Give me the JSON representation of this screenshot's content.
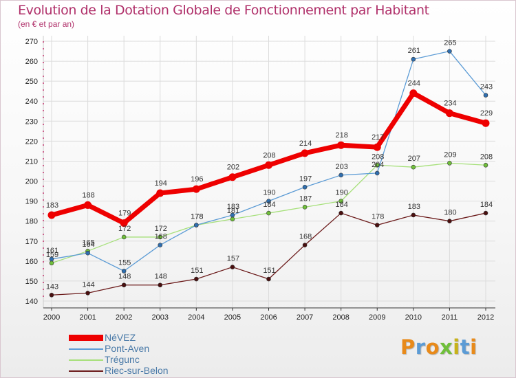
{
  "title": "Evolution de la Dotation Globale de Fonctionnement par Habitant",
  "subtitle": "(en € et par an)",
  "brand": {
    "letters": [
      "P",
      "r",
      "o",
      "x",
      "i",
      "t",
      "i"
    ],
    "colors": [
      "#e88a1a",
      "#5b9bd5",
      "#e88a1a",
      "#6fbf3a",
      "#c7b21a",
      "#5b9bd5",
      "#e88a1a"
    ]
  },
  "chart_data": {
    "type": "line",
    "title": "Evolution de la Dotation Globale de Fonctionnement par Habitant",
    "subtitle": "(en € et par an)",
    "xlabel": "",
    "ylabel": "",
    "x": [
      "2000",
      "2001",
      "2002",
      "2003",
      "2004",
      "2005",
      "2006",
      "2007",
      "2008",
      "2009",
      "2010",
      "2011",
      "2012"
    ],
    "ylim": [
      140,
      270
    ],
    "yticks": [
      140,
      150,
      160,
      170,
      180,
      190,
      200,
      210,
      220,
      230,
      240,
      250,
      260,
      270
    ],
    "grid": true,
    "legend_position": "bottom-left",
    "series": [
      {
        "name": "Riec-sur-Belon",
        "color": "#6b1a1a",
        "values": [
          143,
          144,
          148,
          148,
          151,
          157,
          151,
          168,
          184,
          178,
          183,
          180,
          184
        ]
      },
      {
        "name": "Trégunc",
        "color": "#a6e07a",
        "values": [
          159,
          165,
          172,
          172,
          178,
          181,
          184,
          187,
          190,
          208,
          207,
          209,
          208
        ]
      },
      {
        "name": "Pont-Aven",
        "color": "#5b9bd5",
        "values": [
          161,
          164,
          155,
          168,
          178,
          183,
          190,
          197,
          203,
          204,
          261,
          265,
          243
        ]
      },
      {
        "name": "NéVEZ",
        "color": "#ee0000",
        "values": [
          183,
          188,
          179,
          194,
          196,
          202,
          208,
          214,
          218,
          217,
          244,
          234,
          229
        ]
      }
    ],
    "legend": [
      "NéVEZ",
      "Pont-Aven",
      "Trégunc",
      "Riec-sur-Belon"
    ]
  }
}
